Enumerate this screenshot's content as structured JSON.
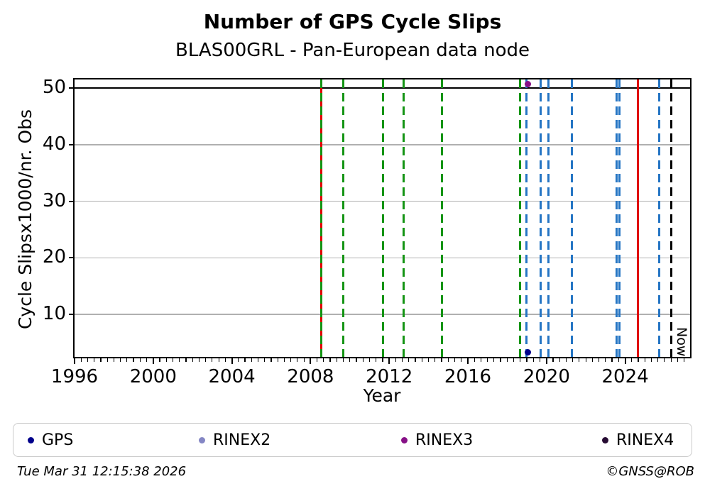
{
  "title": "Number of GPS Cycle Slips",
  "subtitle": "BLAS00GRL - Pan-European data node",
  "footer": {
    "timestamp": "Tue Mar 31 12:15:38 2026",
    "credit": "©GNSS@ROB"
  },
  "legend": {
    "items": [
      {
        "label": "GPS",
        "color": "#00008b"
      },
      {
        "label": "RINEX2",
        "color": "#8486c4"
      },
      {
        "label": "RINEX3",
        "color": "#871187"
      },
      {
        "label": "RINEX4",
        "color": "#270b33"
      }
    ]
  },
  "chart_data": {
    "type": "scatter",
    "title": "Number of GPS Cycle Slips",
    "subtitle": "BLAS00GRL - Pan-European data node",
    "xlabel": "Year",
    "ylabel": "Cycle Slipsx1000/nr. Obs",
    "xlim": [
      1996,
      2027.3
    ],
    "ylim": [
      2.5,
      51.5
    ],
    "x_ticks": [
      1996,
      2000,
      2004,
      2008,
      2012,
      2016,
      2020,
      2024
    ],
    "x_minor_tick_step_years": 0.3333,
    "y_ticks": [
      10,
      20,
      30,
      40,
      50
    ],
    "grid": "horizontal-only",
    "grid_color": "#b0b0b0",
    "legend_position": "bottom",
    "reference_lines": [
      {
        "axis": "y",
        "value": 50,
        "color": "#000000",
        "style": "solid"
      }
    ],
    "vertical_event_lines": [
      {
        "x": 2008.54,
        "color": "#e00000",
        "style": "solid"
      },
      {
        "x": 2008.54,
        "color": "#149414",
        "style": "dashed"
      },
      {
        "x": 2009.66,
        "color": "#149414",
        "style": "dashed"
      },
      {
        "x": 2011.69,
        "color": "#149414",
        "style": "dashed"
      },
      {
        "x": 2012.73,
        "color": "#149414",
        "style": "dashed"
      },
      {
        "x": 2014.68,
        "color": "#149414",
        "style": "dashed"
      },
      {
        "x": 2018.66,
        "color": "#149414",
        "style": "dashed"
      },
      {
        "x": 2018.98,
        "color": "#2575c4",
        "style": "dashed"
      },
      {
        "x": 2019.71,
        "color": "#2575c4",
        "style": "dashed"
      },
      {
        "x": 2020.1,
        "color": "#2575c4",
        "style": "dashed"
      },
      {
        "x": 2021.3,
        "color": "#2575c4",
        "style": "dashed"
      },
      {
        "x": 2023.57,
        "color": "#2575c4",
        "style": "dashed"
      },
      {
        "x": 2023.72,
        "color": "#2575c4",
        "style": "dashed"
      },
      {
        "x": 2024.66,
        "color": "#e00000",
        "style": "solid"
      },
      {
        "x": 2025.74,
        "color": "#2575c4",
        "style": "dashed"
      },
      {
        "x": 2026.36,
        "color": "#000000",
        "style": "dashed",
        "label": "Now"
      }
    ],
    "series": [
      {
        "name": "GPS",
        "color": "#00008b",
        "points": [
          {
            "x": 2019.06,
            "y": 3.3
          }
        ]
      },
      {
        "name": "RINEX2",
        "color": "#8486c4",
        "points": []
      },
      {
        "name": "RINEX3",
        "color": "#871187",
        "points": [
          {
            "x": 2019.06,
            "y": 50.7
          }
        ]
      },
      {
        "name": "RINEX4",
        "color": "#270b33",
        "points": []
      }
    ]
  }
}
